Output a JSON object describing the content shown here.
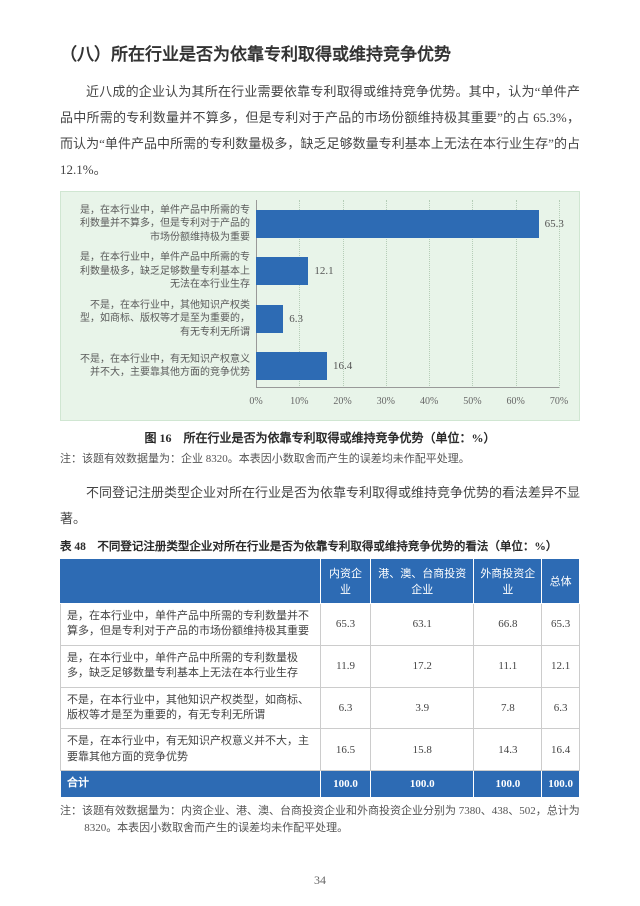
{
  "heading": "（八）所在行业是否为依靠专利取得或维持竞争优势",
  "para1": "近八成的企业认为其所在行业需要依靠专利取得或维持竞争优势。其中，认为“单件产品中所需的专利数量并不算多，但是专利对于产品的市场份额维持极其重要”的占 65.3%，而认为“单件产品中所需的专利数量极多，缺乏足够数量专利基本上无法在本行业生存”的占 12.1%。",
  "chart": {
    "type": "bar",
    "background_color": "#e8f4e9",
    "bar_color": "#2d6bb4",
    "grid_color": "#b5cdb7",
    "axis_color": "#999999",
    "categories": [
      "是，在本行业中，单件产品中所需的专利数量并不算多，但是专利对于产品的市场份额维持极为重要",
      "是，在本行业中，单件产品中所需的专利数量极多，缺乏足够数量专利基本上无法在本行业生存",
      "不是，在本行业中，其他知识产权类型，如商标、版权等才是至为重要的，有无专利无所谓",
      "不是，在本行业中，有无知识产权意义并不大，主要靠其他方面的竞争优势"
    ],
    "values": [
      65.3,
      12.1,
      6.3,
      16.4
    ],
    "xlim": [
      0,
      70
    ],
    "tick_step": 10,
    "tick_suffix": "%",
    "title": "图 16　所在行业是否为依靠专利取得或维持竞争优势（单位：%）",
    "note": "注：该题有效数据量为：企业 8320。本表因小数取舍而产生的误差均未作配平处理。"
  },
  "para2": "不同登记注册类型企业对所在行业是否为依靠专利取得或维持竞争优势的看法差异不显著。",
  "table": {
    "title": "表 48　不同登记注册类型企业对所在行业是否为依靠专利取得或维持竞争优势的看法（单位：%）",
    "header_bg": "#2d6bb4",
    "header_fg": "#ffffff",
    "columns": [
      "内资企业",
      "港、澳、台商投资企业",
      "外商投资企业",
      "总体"
    ],
    "rows": [
      {
        "label": "是，在本行业中，单件产品中所需的专利数量并不算多，但是专利对于产品的市场份额维持极其重要",
        "cells": [
          "65.3",
          "63.1",
          "66.8",
          "65.3"
        ]
      },
      {
        "label": "是，在本行业中，单件产品中所需的专利数量极多，缺乏足够数量专利基本上无法在本行业生存",
        "cells": [
          "11.9",
          "17.2",
          "11.1",
          "12.1"
        ]
      },
      {
        "label": "不是，在本行业中，其他知识产权类型，如商标、版权等才是至为重要的，有无专利无所谓",
        "cells": [
          "6.3",
          "3.9",
          "7.8",
          "6.3"
        ]
      },
      {
        "label": "不是，在本行业中，有无知识产权意义并不大，主要靠其他方面的竞争优势",
        "cells": [
          "16.5",
          "15.8",
          "14.3",
          "16.4"
        ]
      }
    ],
    "total": {
      "label": "合计",
      "cells": [
        "100.0",
        "100.0",
        "100.0",
        "100.0"
      ]
    },
    "note": "注：该题有效数据量为：内资企业、港、澳、台商投资企业和外商投资企业分别为 7380、438、502，总计为 8320。本表因小数取舍而产生的误差均未作配平处理。"
  },
  "page_no": "34"
}
